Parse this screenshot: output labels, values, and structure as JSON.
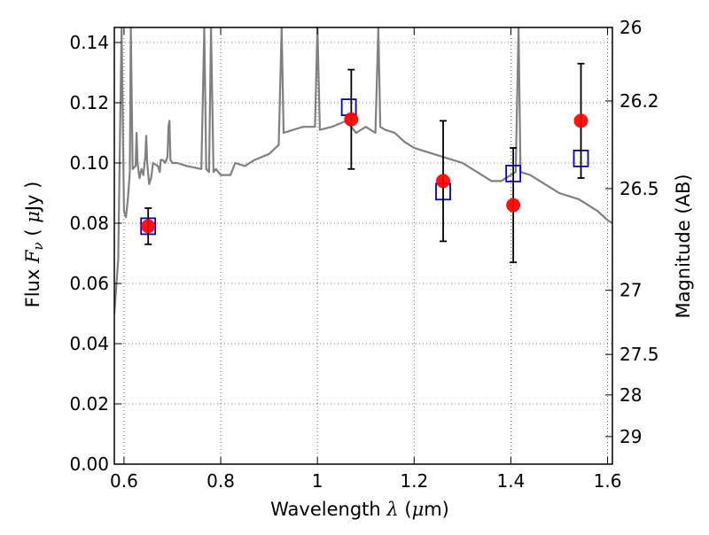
{
  "chart_data": {
    "type": "scatter",
    "title": "",
    "xlabel": "Wavelength  λ (μm)",
    "ylabel": "Flux  F_ν  ( μJy )",
    "ylabel_parts": {
      "prefix": "Flux  ",
      "symbol": "F",
      "subscript": "ν",
      "suffix": "  ( ",
      "mu": "μ",
      "unit": "Jy )"
    },
    "xlabel_parts": {
      "prefix": "Wavelength  ",
      "symbol": "λ",
      "open": " (",
      "mu": "μ",
      "unit": "m)"
    },
    "y2label": "Magnitude (AB)",
    "xlim": [
      0.58,
      1.61
    ],
    "ylim": [
      0.0,
      0.145
    ],
    "grid": true,
    "x_ticks": [
      {
        "v": 0.6,
        "label": "0.6"
      },
      {
        "v": 0.8,
        "label": "0.8"
      },
      {
        "v": 1.0,
        "label": "1"
      },
      {
        "v": 1.2,
        "label": "1.2"
      },
      {
        "v": 1.4,
        "label": "1.4"
      },
      {
        "v": 1.6,
        "label": "1.6"
      }
    ],
    "y_ticks": [
      {
        "v": 0.0,
        "label": "0.00"
      },
      {
        "v": 0.02,
        "label": "0.02"
      },
      {
        "v": 0.04,
        "label": "0.04"
      },
      {
        "v": 0.06,
        "label": "0.06"
      },
      {
        "v": 0.08,
        "label": "0.08"
      },
      {
        "v": 0.1,
        "label": "0.10"
      },
      {
        "v": 0.12,
        "label": "0.12"
      },
      {
        "v": 0.14,
        "label": "0.14"
      }
    ],
    "y2_ticks": [
      {
        "mag": 26,
        "label": "26"
      },
      {
        "mag": 26.2,
        "label": "26.2"
      },
      {
        "mag": 26.5,
        "label": "26.5"
      },
      {
        "mag": 27,
        "label": "27"
      },
      {
        "mag": 27.5,
        "label": "27.5"
      },
      {
        "mag": 28,
        "label": "28"
      },
      {
        "mag": 29,
        "label": "29"
      }
    ],
    "series": [
      {
        "kind": "errorbar",
        "color": "#ff0000",
        "points": [
          {
            "x": 0.65,
            "y": 0.079,
            "err": 0.006
          },
          {
            "x": 1.07,
            "y": 0.1145,
            "err": 0.0165
          },
          {
            "x": 1.26,
            "y": 0.094,
            "err": 0.02
          },
          {
            "x": 1.405,
            "y": 0.086,
            "err": 0.019
          },
          {
            "x": 1.545,
            "y": 0.114,
            "err": 0.019
          }
        ]
      },
      {
        "kind": "model_photometry",
        "color": "#0000cc",
        "points": [
          {
            "x": 0.65,
            "y": 0.079
          },
          {
            "x": 1.065,
            "y": 0.1185
          },
          {
            "x": 1.26,
            "y": 0.0905
          },
          {
            "x": 1.405,
            "y": 0.0965
          },
          {
            "x": 1.545,
            "y": 0.1015
          }
        ]
      },
      {
        "kind": "spectrum",
        "color": "#808080",
        "points": [
          [
            0.58,
            0.05
          ],
          [
            0.588,
            0.068
          ],
          [
            0.595,
            0.145
          ],
          [
            0.6,
            0.084
          ],
          [
            0.604,
            0.082
          ],
          [
            0.608,
            0.088
          ],
          [
            0.612,
            0.097
          ],
          [
            0.614,
            0.145
          ],
          [
            0.618,
            0.098
          ],
          [
            0.624,
            0.099
          ],
          [
            0.626,
            0.11
          ],
          [
            0.628,
            0.1
          ],
          [
            0.632,
            0.095
          ],
          [
            0.636,
            0.098
          ],
          [
            0.64,
            0.096
          ],
          [
            0.644,
            0.102
          ],
          [
            0.646,
            0.109
          ],
          [
            0.648,
            0.1
          ],
          [
            0.652,
            0.093
          ],
          [
            0.656,
            0.095
          ],
          [
            0.66,
            0.1
          ],
          [
            0.67,
            0.099
          ],
          [
            0.674,
            0.097
          ],
          [
            0.676,
            0.101
          ],
          [
            0.68,
            0.101
          ],
          [
            0.685,
            0.1
          ],
          [
            0.69,
            0.102
          ],
          [
            0.692,
            0.112
          ],
          [
            0.694,
            0.114
          ],
          [
            0.696,
            0.101
          ],
          [
            0.7,
            0.1
          ],
          [
            0.71,
            0.1
          ],
          [
            0.73,
            0.099
          ],
          [
            0.76,
            0.098
          ],
          [
            0.766,
            0.145
          ],
          [
            0.77,
            0.098
          ],
          [
            0.776,
            0.097
          ],
          [
            0.78,
            0.145
          ],
          [
            0.785,
            0.097
          ],
          [
            0.79,
            0.098
          ],
          [
            0.8,
            0.096
          ],
          [
            0.82,
            0.096
          ],
          [
            0.83,
            0.1
          ],
          [
            0.85,
            0.099
          ],
          [
            0.87,
            0.101
          ],
          [
            0.9,
            0.103
          ],
          [
            0.92,
            0.106
          ],
          [
            0.926,
            0.145
          ],
          [
            0.93,
            0.11
          ],
          [
            0.95,
            0.111
          ],
          [
            0.97,
            0.112
          ],
          [
            0.995,
            0.112
          ],
          [
            1.0,
            0.145
          ],
          [
            1.005,
            0.111
          ],
          [
            1.03,
            0.112
          ],
          [
            1.06,
            0.114
          ],
          [
            1.08,
            0.11
          ],
          [
            1.1,
            0.112
          ],
          [
            1.12,
            0.11
          ],
          [
            1.126,
            0.145
          ],
          [
            1.13,
            0.112
          ],
          [
            1.14,
            0.111
          ],
          [
            1.16,
            0.11
          ],
          [
            1.18,
            0.107
          ],
          [
            1.2,
            0.105
          ],
          [
            1.22,
            0.104
          ],
          [
            1.24,
            0.103
          ],
          [
            1.26,
            0.102
          ],
          [
            1.28,
            0.101
          ],
          [
            1.3,
            0.1
          ],
          [
            1.32,
            0.098
          ],
          [
            1.34,
            0.096
          ],
          [
            1.36,
            0.094
          ],
          [
            1.38,
            0.094
          ],
          [
            1.4,
            0.096
          ],
          [
            1.41,
            0.097
          ],
          [
            1.416,
            0.145
          ],
          [
            1.42,
            0.097
          ],
          [
            1.44,
            0.096
          ],
          [
            1.46,
            0.094
          ],
          [
            1.48,
            0.092
          ],
          [
            1.5,
            0.09
          ],
          [
            1.52,
            0.089
          ],
          [
            1.54,
            0.088
          ],
          [
            1.56,
            0.086
          ],
          [
            1.58,
            0.084
          ],
          [
            1.6,
            0.081
          ],
          [
            1.61,
            0.08
          ]
        ]
      }
    ]
  }
}
